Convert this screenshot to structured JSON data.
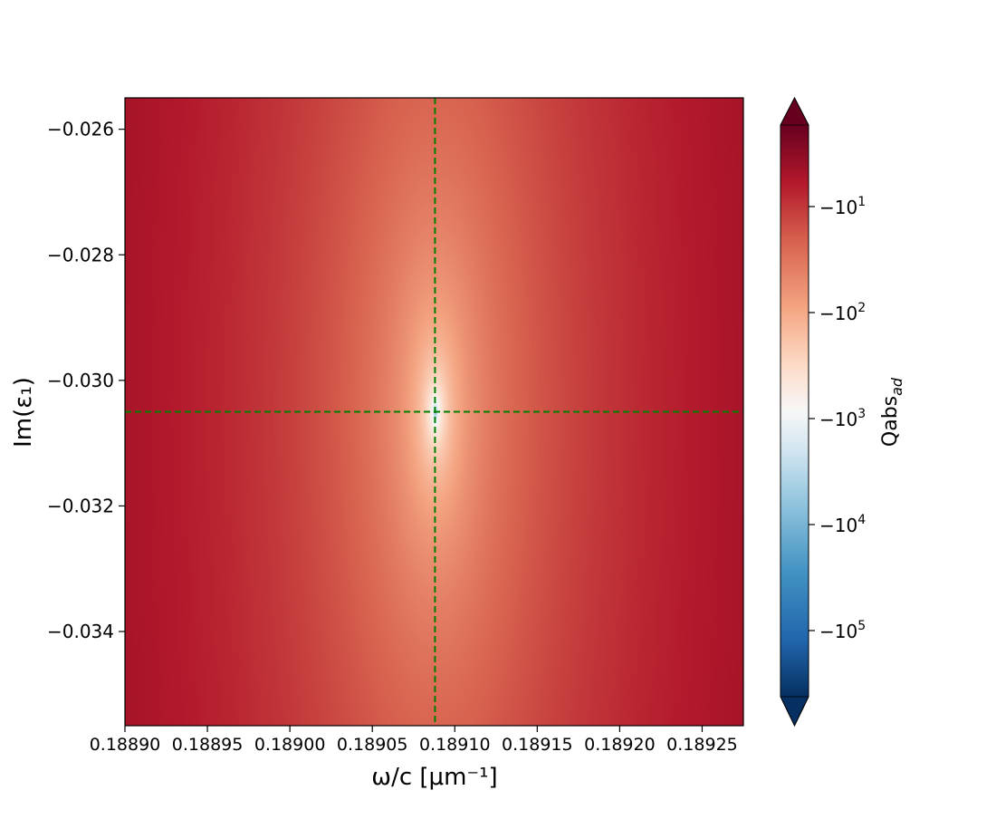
{
  "chart_data": {
    "type": "heatmap",
    "title": "",
    "xlabel": "ω/c [μm⁻¹]",
    "ylabel": "Im(ε₁)",
    "colorbar_label": "Qabs_ad",
    "colorbar_scale": "symlog (negative values)",
    "colormap": "RdBu_r",
    "colorbar_extend": "both",
    "xlim": [
      0.1889,
      0.189275
    ],
    "ylim": [
      -0.0355,
      -0.0255
    ],
    "x_ticks": [
      0.1889,
      0.18895,
      0.189,
      0.18905,
      0.1891,
      0.18915,
      0.1892,
      0.18925
    ],
    "x_tick_labels": [
      "0.18890",
      "0.18895",
      "0.18900",
      "0.18905",
      "0.18910",
      "0.18915",
      "0.18920",
      "0.18925"
    ],
    "y_ticks": [
      -0.026,
      -0.028,
      -0.03,
      -0.032,
      -0.034
    ],
    "y_tick_labels": [
      "−0.026",
      "−0.028",
      "−0.030",
      "−0.032",
      "−0.034"
    ],
    "colorbar_ticks": [
      {
        "label": "−10",
        "exp": "1"
      },
      {
        "label": "−10",
        "exp": "2"
      },
      {
        "label": "−10",
        "exp": "3"
      },
      {
        "label": "−10",
        "exp": "4"
      },
      {
        "label": "−10",
        "exp": "5"
      }
    ],
    "pole": {
      "x": 0.189088,
      "y": -0.0305
    },
    "reference_lines": {
      "style": "dashed",
      "color": "#008000",
      "x": 0.189088,
      "y": -0.0305
    },
    "grid": false
  }
}
